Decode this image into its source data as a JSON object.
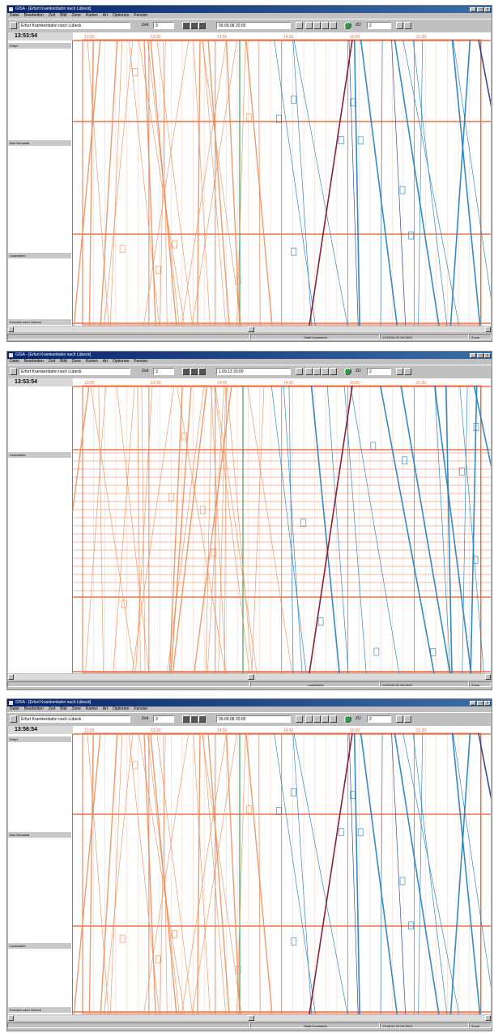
{
  "windows": [
    {
      "title": "GISA - [Erfurt Kramkenbahn nach Lübeck]",
      "menu": [
        "Datei",
        "Bearbeiten",
        "Zeit",
        "Bild",
        "Zone",
        "Karten",
        "Art",
        "Optionen",
        "Fenster"
      ],
      "route_select": "Erfurt Kramkenbahn nach Lübeck",
      "zeit_label": "Zeit",
      "zeit_value": "3",
      "date_field": "09.09.08 20:00",
      "num_label": "ZÜ",
      "num_value": "2",
      "clock": "13:53:54",
      "stations": [
        "Erfurt",
        "Bad Neustadt",
        "Lauenstein",
        "Kronach nach Lübeck"
      ],
      "status_center": "Stadt Kramkenb.",
      "status_right": "13:53:54 02.08.2003",
      "status_far": "Zoom"
    },
    {
      "title": "GISA - [Erfurt Kramkenbahn nach Lübeck]",
      "menu": [
        "Datei",
        "Bearbeiten",
        "Zeit",
        "Bild",
        "Zone",
        "Karten",
        "Art",
        "Optionen",
        "Fenster"
      ],
      "route_select": "Erfurt Kramkenbahn nach Lübeck",
      "zeit_label": "Zeit",
      "zeit_value": "3",
      "date_field": "1.09.13 20:00",
      "num_label": "ZÜ",
      "num_value": "2",
      "clock": "13:53:54",
      "stations": [
        "Lauenstein"
      ],
      "status_center": "Lauenstein",
      "status_right": "13:53:54 02.08.2003",
      "status_far": "Zoom"
    },
    {
      "title": "GISA - [Erfurt Kramkenbahn nach Lübeck]",
      "menu": [
        "Datei",
        "Bearbeiten",
        "Zeit",
        "Bild",
        "Zone",
        "Karten",
        "Art",
        "Optionen",
        "Fenster"
      ],
      "route_select": "Erfurt Kramkenbahn nach Lübeck",
      "zeit_label": "Zeit",
      "zeit_value": "3",
      "date_field": "09.09.08 20:00",
      "num_label": "ZÜ",
      "num_value": "2",
      "clock": "13:56:54",
      "stations": [
        "Erfurt",
        "Bad Neustadt",
        "Lauenstein",
        "Kronach nach Lübeck"
      ],
      "status_center": "Stadt Kramkenb.",
      "status_right": "13:56:54 02.08.2003",
      "status_far": "Zoom"
    }
  ],
  "time_ticks": [
    "13:00",
    "13:30",
    "14:00",
    "14:30",
    "15:00",
    "15:30"
  ],
  "colors": {
    "grid": "#e8734a",
    "train_orange": "#ee8a55",
    "train_blue": "#1f7fc0",
    "train_darkblue": "#233a8c",
    "train_maroon": "#8a1f3a",
    "current_time": "#3aa65a"
  },
  "icons": [
    "app-icon",
    "minimize-icon",
    "maximize-icon",
    "close-icon",
    "zoom-in-icon",
    "zoom-out-icon",
    "print-icon",
    "go-icon",
    "chart-icon"
  ]
}
